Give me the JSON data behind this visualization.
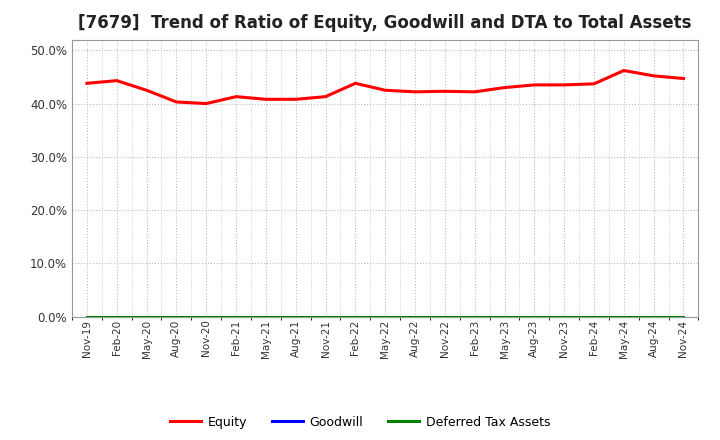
{
  "title": "[7679]  Trend of Ratio of Equity, Goodwill and DTA to Total Assets",
  "x_labels": [
    "Nov-19",
    "Feb-20",
    "May-20",
    "Aug-20",
    "Nov-20",
    "Feb-21",
    "May-21",
    "Aug-21",
    "Nov-21",
    "Feb-22",
    "May-22",
    "Aug-22",
    "Nov-22",
    "Feb-23",
    "May-23",
    "Aug-23",
    "Nov-23",
    "Feb-24",
    "May-24",
    "Aug-24",
    "Nov-24"
  ],
  "equity": [
    0.438,
    0.443,
    0.425,
    0.403,
    0.4,
    0.413,
    0.408,
    0.408,
    0.413,
    0.438,
    0.425,
    0.422,
    0.423,
    0.422,
    0.43,
    0.435,
    0.435,
    0.437,
    0.462,
    0.452,
    0.447
  ],
  "goodwill": [
    0.0,
    0.0,
    0.0,
    0.0,
    0.0,
    0.0,
    0.0,
    0.0,
    0.0,
    0.0,
    0.0,
    0.0,
    0.0,
    0.0,
    0.0,
    0.0,
    0.0,
    0.0,
    0.0,
    0.0,
    0.0
  ],
  "dta": [
    0.0,
    0.0,
    0.0,
    0.0,
    0.0,
    0.0,
    0.0,
    0.0,
    0.0,
    0.0,
    0.0,
    0.0,
    0.0,
    0.0,
    0.0,
    0.0,
    0.0,
    0.0,
    0.0,
    0.0,
    0.0
  ],
  "equity_color": "#FF0000",
  "goodwill_color": "#0000FF",
  "dta_color": "#008000",
  "ylim": [
    0.0,
    0.52
  ],
  "yticks": [
    0.0,
    0.1,
    0.2,
    0.3,
    0.4,
    0.5
  ],
  "background_color": "#FFFFFF",
  "plot_bg_color": "#FFFFFF",
  "grid_color": "#BBBBBB",
  "title_fontsize": 12,
  "legend_labels": [
    "Equity",
    "Goodwill",
    "Deferred Tax Assets"
  ],
  "line_width": 2.2
}
